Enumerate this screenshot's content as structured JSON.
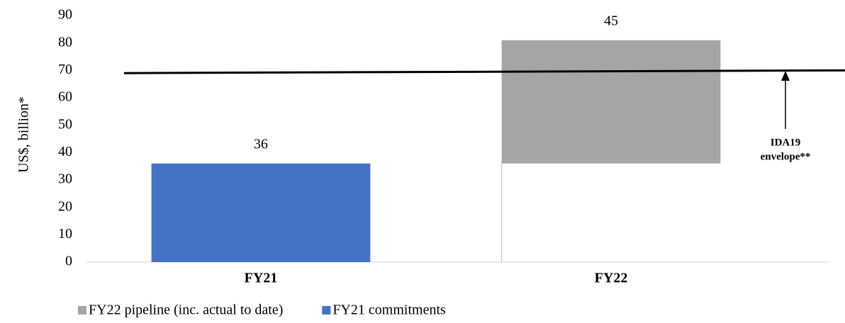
{
  "chart_data": {
    "type": "stacked_bar",
    "categories": [
      "FY21",
      "FY22"
    ],
    "series": [
      {
        "name": "FY21 commitments",
        "color": "#4472c4",
        "fills": [
          "#4472c4",
          "none"
        ],
        "values": [
          36,
          36
        ]
      },
      {
        "name": "FY22 pipeline (inc. actual to date)",
        "color": "#a5a5a5",
        "values": [
          null,
          45
        ]
      }
    ],
    "legend_order": [
      1,
      0
    ],
    "y_label": "US$, billion*",
    "ylim": [
      0,
      90
    ],
    "yticks": [
      0,
      10,
      20,
      30,
      40,
      50,
      60,
      70,
      80,
      90
    ],
    "reference_line": {
      "values": [
        69,
        70
      ],
      "color": "#000"
    },
    "annotation": [
      "IDA19",
      "envelope**"
    ]
  }
}
